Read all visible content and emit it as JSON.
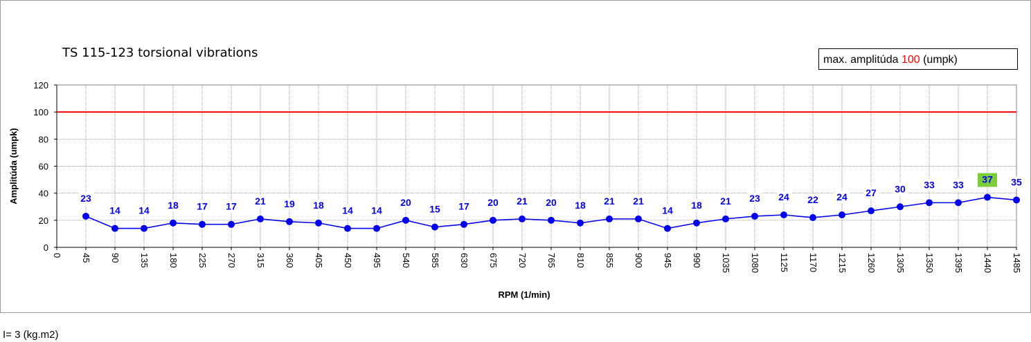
{
  "chart_data": {
    "type": "line",
    "title": "TS 115-123 torsional vibrations",
    "xlabel": "RPM (1/min)",
    "ylabel": "Amplitúda (umpk)",
    "ylim": [
      0,
      120
    ],
    "yticks": [
      0,
      20,
      40,
      60,
      80,
      100,
      120
    ],
    "xticks": [
      0,
      45,
      90,
      135,
      180,
      225,
      270,
      315,
      360,
      405,
      450,
      495,
      540,
      585,
      630,
      675,
      720,
      765,
      810,
      855,
      900,
      945,
      990,
      1035,
      1080,
      1125,
      1170,
      1215,
      1260,
      1305,
      1350,
      1395,
      1440,
      1485
    ],
    "x": [
      45,
      90,
      135,
      180,
      225,
      270,
      315,
      360,
      405,
      450,
      495,
      540,
      585,
      630,
      675,
      720,
      765,
      810,
      855,
      900,
      945,
      990,
      1035,
      1080,
      1125,
      1170,
      1215,
      1260,
      1305,
      1350,
      1395,
      1440,
      1485
    ],
    "series": [
      {
        "values": [
          23,
          14,
          14,
          18,
          17,
          17,
          21,
          19,
          18,
          14,
          14,
          20,
          15,
          17,
          20,
          21,
          20,
          18,
          21,
          21,
          14,
          18,
          21,
          23,
          24,
          22,
          24,
          27,
          30,
          33,
          33,
          37,
          35
        ],
        "color": "#0000ee"
      }
    ],
    "limit_line": {
      "value": 100,
      "color": "#ff0000"
    },
    "highlight": {
      "x": 1440,
      "color": "#7ccc3c"
    },
    "grid": true
  },
  "legend": {
    "prefix": "max. amplitúda ",
    "value": "100",
    "suffix": " (umpk)"
  },
  "footer": {
    "note": "I= 3 (kg.m2)"
  }
}
